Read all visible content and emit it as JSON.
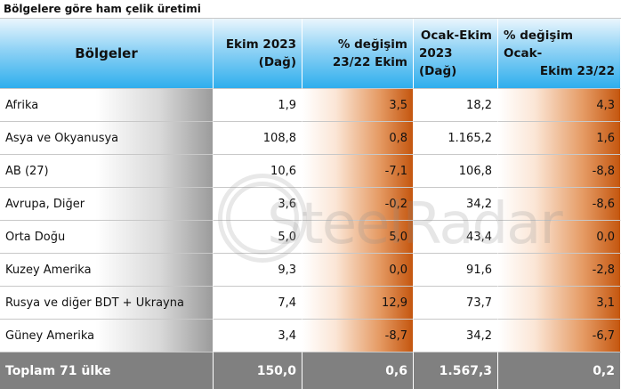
{
  "title": "Bölgelere göre ham çelik üretimi",
  "watermark": "SteelRadar",
  "table": {
    "columns": [
      [
        "Bölgeler"
      ],
      [
        "Ekim 2023",
        "(Dağ)"
      ],
      [
        "% değişim",
        "23/22 Ekim"
      ],
      [
        "Ocak-Ekim",
        "2023 (Dağ)"
      ],
      [
        "% değişim Ocak-",
        "Ekim 23/22"
      ]
    ],
    "rows": [
      [
        "Afrika",
        "1,9",
        "3,5",
        "18,2",
        "4,3"
      ],
      [
        "Asya ve Okyanusya",
        "108,8",
        "0,8",
        "1.165,2",
        "1,6"
      ],
      [
        "AB (27)",
        "10,6",
        "-7,1",
        "106,8",
        "-8,8"
      ],
      [
        "Avrupa, Diğer",
        "3,6",
        "-0,2",
        "34,2",
        "-8,6"
      ],
      [
        "Orta Doğu",
        "5,0",
        "5,0",
        "43,4",
        "0,0"
      ],
      [
        "Kuzey Amerika",
        "9,3",
        "0,0",
        "91,6",
        "-2,8"
      ],
      [
        "Rusya ve diğer BDT + Ukrayna",
        "7,4",
        "12,9",
        "73,7",
        "3,1"
      ],
      [
        "Güney Amerika",
        "3,4",
        "-8,7",
        "34,2",
        "-6,7"
      ]
    ],
    "total": [
      "Toplam 71 ülke",
      "150,0",
      "0,6",
      "1.567,3",
      "0,2"
    ]
  }
}
